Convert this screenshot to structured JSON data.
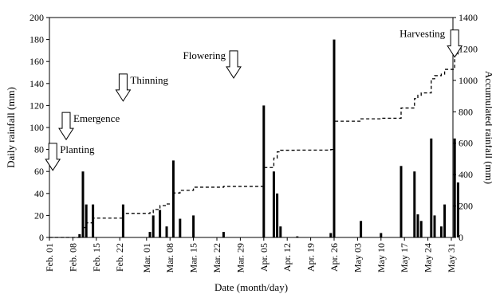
{
  "chart_data": {
    "type": "bar+line",
    "xlabel": "Date (month/day)",
    "ylabel_left": "Daily rainfall (mm)",
    "ylabel_right": "Accumulated rainfall (mm)",
    "ylim_left": [
      0,
      200
    ],
    "ylim_right": [
      0,
      1400
    ],
    "yticks_left": [
      0,
      20,
      40,
      60,
      80,
      100,
      120,
      140,
      160,
      180,
      200
    ],
    "yticks_right": [
      0,
      200,
      400,
      600,
      800,
      1000,
      1200,
      1400
    ],
    "xrange_days": [
      "Feb. 01",
      "Jun. 01"
    ],
    "xticks": [
      {
        "label": "Feb. 01",
        "date": "2020-02-01"
      },
      {
        "label": "Feb. 08",
        "date": "2020-02-08"
      },
      {
        "label": "Feb. 15",
        "date": "2020-02-15"
      },
      {
        "label": "Feb. 22",
        "date": "2020-02-22"
      },
      {
        "label": "Mar. 01",
        "date": "2020-03-01"
      },
      {
        "label": "Mar. 08",
        "date": "2020-03-08"
      },
      {
        "label": "Mar. 15",
        "date": "2020-03-15"
      },
      {
        "label": "Mar. 22",
        "date": "2020-03-22"
      },
      {
        "label": "Mar. 29",
        "date": "2020-03-29"
      },
      {
        "label": "Apr. 05",
        "date": "2020-04-05"
      },
      {
        "label": "Apr. 12",
        "date": "2020-04-12"
      },
      {
        "label": "Apr. 19",
        "date": "2020-04-19"
      },
      {
        "label": "Apr. 26",
        "date": "2020-04-26"
      },
      {
        "label": "May 03",
        "date": "2020-05-03"
      },
      {
        "label": "May 10",
        "date": "2020-05-10"
      },
      {
        "label": "May 17",
        "date": "2020-05-17"
      },
      {
        "label": "May 24",
        "date": "2020-05-24"
      },
      {
        "label": "May 31",
        "date": "2020-05-31"
      }
    ],
    "series": [
      {
        "type": "bar",
        "axis": "left",
        "color": "#000000",
        "points": [
          {
            "date": "2020-02-10",
            "value": 3
          },
          {
            "date": "2020-02-11",
            "value": 60
          },
          {
            "date": "2020-02-12",
            "value": 30
          },
          {
            "date": "2020-02-14",
            "value": 30
          },
          {
            "date": "2020-02-23",
            "value": 30
          },
          {
            "date": "2020-03-02",
            "value": 5
          },
          {
            "date": "2020-03-03",
            "value": 20
          },
          {
            "date": "2020-03-05",
            "value": 25
          },
          {
            "date": "2020-03-07",
            "value": 10
          },
          {
            "date": "2020-03-09",
            "value": 70
          },
          {
            "date": "2020-03-11",
            "value": 17
          },
          {
            "date": "2020-03-15",
            "value": 20
          },
          {
            "date": "2020-03-24",
            "value": 5
          },
          {
            "date": "2020-04-05",
            "value": 120
          },
          {
            "date": "2020-04-08",
            "value": 60
          },
          {
            "date": "2020-04-09",
            "value": 40
          },
          {
            "date": "2020-04-10",
            "value": 10
          },
          {
            "date": "2020-04-15",
            "value": 1
          },
          {
            "date": "2020-04-25",
            "value": 4
          },
          {
            "date": "2020-04-26",
            "value": 180
          },
          {
            "date": "2020-05-04",
            "value": 15
          },
          {
            "date": "2020-05-10",
            "value": 4
          },
          {
            "date": "2020-05-16",
            "value": 65
          },
          {
            "date": "2020-05-20",
            "value": 60
          },
          {
            "date": "2020-05-21",
            "value": 21
          },
          {
            "date": "2020-05-22",
            "value": 15
          },
          {
            "date": "2020-05-25",
            "value": 90
          },
          {
            "date": "2020-05-26",
            "value": 20
          },
          {
            "date": "2020-05-28",
            "value": 10
          },
          {
            "date": "2020-05-29",
            "value": 30
          },
          {
            "date": "2020-06-01",
            "value": 90
          },
          {
            "date": "2020-06-02",
            "value": 50
          }
        ]
      },
      {
        "type": "line",
        "axis": "right",
        "style": "dashed",
        "color": "#000000",
        "step": true,
        "points": [
          {
            "date": "2020-02-01",
            "value": 0
          },
          {
            "date": "2020-02-10",
            "value": 0
          },
          {
            "date": "2020-02-11",
            "value": 63
          },
          {
            "date": "2020-02-12",
            "value": 93
          },
          {
            "date": "2020-02-14",
            "value": 123
          },
          {
            "date": "2020-02-23",
            "value": 153
          },
          {
            "date": "2020-03-02",
            "value": 158
          },
          {
            "date": "2020-03-03",
            "value": 178
          },
          {
            "date": "2020-03-05",
            "value": 203
          },
          {
            "date": "2020-03-07",
            "value": 213
          },
          {
            "date": "2020-03-09",
            "value": 283
          },
          {
            "date": "2020-03-11",
            "value": 300
          },
          {
            "date": "2020-03-15",
            "value": 320
          },
          {
            "date": "2020-03-24",
            "value": 325
          },
          {
            "date": "2020-04-05",
            "value": 445
          },
          {
            "date": "2020-04-08",
            "value": 505
          },
          {
            "date": "2020-04-09",
            "value": 545
          },
          {
            "date": "2020-04-10",
            "value": 555
          },
          {
            "date": "2020-04-15",
            "value": 556
          },
          {
            "date": "2020-04-25",
            "value": 560
          },
          {
            "date": "2020-04-26",
            "value": 740
          },
          {
            "date": "2020-05-04",
            "value": 755
          },
          {
            "date": "2020-05-10",
            "value": 759
          },
          {
            "date": "2020-05-16",
            "value": 824
          },
          {
            "date": "2020-05-20",
            "value": 884
          },
          {
            "date": "2020-05-21",
            "value": 905
          },
          {
            "date": "2020-05-22",
            "value": 920
          },
          {
            "date": "2020-05-25",
            "value": 1010
          },
          {
            "date": "2020-05-26",
            "value": 1030
          },
          {
            "date": "2020-05-28",
            "value": 1040
          },
          {
            "date": "2020-05-29",
            "value": 1070
          },
          {
            "date": "2020-06-01",
            "value": 1160
          },
          {
            "date": "2020-06-02",
            "value": 1210
          }
        ]
      }
    ],
    "annotations": [
      {
        "label": "Planting",
        "date": "2020-02-02",
        "y": 61
      },
      {
        "label": "Emergence",
        "date": "2020-02-06",
        "y": 89
      },
      {
        "label": "Thinning",
        "date": "2020-02-23",
        "y": 124
      },
      {
        "label": "Flowering",
        "date": "2020-03-27",
        "y": 145
      },
      {
        "label": "Harvesting",
        "date": "2020-06-01",
        "y": 164
      }
    ]
  }
}
